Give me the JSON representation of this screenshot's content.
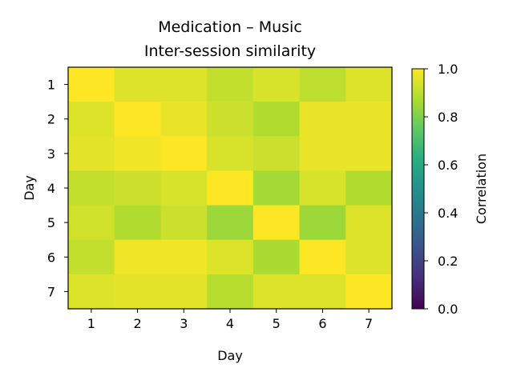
{
  "chart_data": {
    "type": "heatmap",
    "title_line1": "Medication – Music",
    "title_line2": "Inter-session similarity",
    "xlabel": "Day",
    "ylabel": "Day",
    "x_categories": [
      "1",
      "2",
      "3",
      "4",
      "5",
      "6",
      "7"
    ],
    "y_categories": [
      "1",
      "2",
      "3",
      "4",
      "5",
      "6",
      "7"
    ],
    "values": [
      [
        1.0,
        0.95,
        0.95,
        0.91,
        0.94,
        0.9,
        0.95
      ],
      [
        0.95,
        1.0,
        0.97,
        0.92,
        0.88,
        0.97,
        0.97
      ],
      [
        0.96,
        0.98,
        1.0,
        0.94,
        0.92,
        0.97,
        0.97
      ],
      [
        0.91,
        0.92,
        0.94,
        1.0,
        0.86,
        0.94,
        0.88
      ],
      [
        0.93,
        0.88,
        0.92,
        0.85,
        1.0,
        0.85,
        0.95
      ],
      [
        0.91,
        0.98,
        0.98,
        0.95,
        0.87,
        1.0,
        0.95
      ],
      [
        0.95,
        0.96,
        0.96,
        0.89,
        0.95,
        0.95,
        1.0
      ]
    ],
    "colorbar": {
      "label": "Correlation",
      "colormap": "viridis",
      "vmin": 0.0,
      "vmax": 1.0,
      "ticks": [
        "0.0",
        "0.2",
        "0.4",
        "0.6",
        "0.8",
        "1.0"
      ]
    }
  }
}
